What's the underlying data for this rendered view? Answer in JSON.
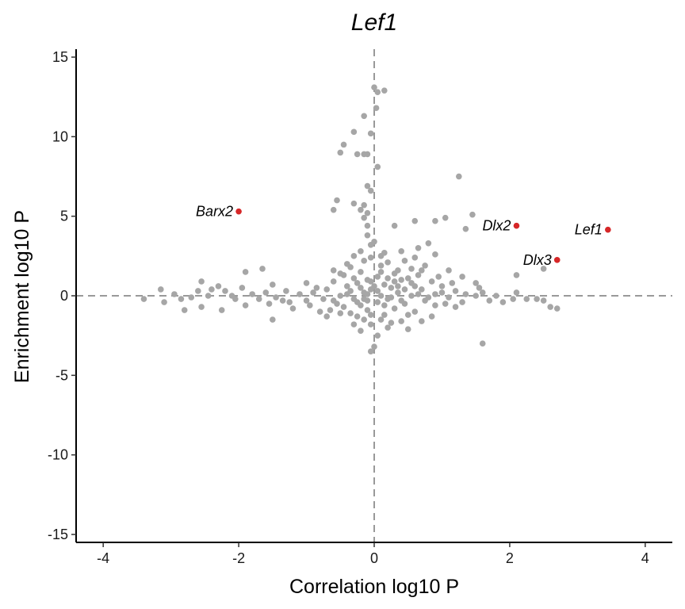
{
  "chart_data": {
    "type": "scatter",
    "title": "Lef1",
    "xlabel": "Correlation log10 P",
    "ylabel": "Enrichment log10 P",
    "xlim": [
      -4.4,
      4.4
    ],
    "ylim": [
      -15.5,
      15.5
    ],
    "xticks": [
      -4,
      -2,
      0,
      2,
      4
    ],
    "yticks": [
      -15,
      -10,
      -5,
      0,
      5,
      10,
      15
    ],
    "reference_lines": {
      "x": 0,
      "y": 0,
      "style": "dashed",
      "color": "#999999"
    },
    "grid": false,
    "colors": {
      "background_points": "#a6a6a6",
      "highlight_points": "#d62728"
    },
    "highlighted_points": [
      {
        "label": "Barx2",
        "x": -2.0,
        "y": 5.3
      },
      {
        "label": "Dlx2",
        "x": 2.1,
        "y": 4.4
      },
      {
        "label": "Lef1",
        "x": 3.45,
        "y": 4.15
      },
      {
        "label": "Dlx3",
        "x": 2.7,
        "y": 2.25
      }
    ],
    "background_points": [
      [
        0.0,
        13.1
      ],
      [
        0.05,
        12.8
      ],
      [
        0.15,
        12.9
      ],
      [
        0.03,
        11.8
      ],
      [
        -0.15,
        11.3
      ],
      [
        -0.3,
        10.3
      ],
      [
        -0.05,
        10.2
      ],
      [
        -0.45,
        9.5
      ],
      [
        -0.5,
        9.0
      ],
      [
        -0.25,
        8.9
      ],
      [
        -0.15,
        8.9
      ],
      [
        -0.1,
        8.9
      ],
      [
        0.05,
        8.1
      ],
      [
        1.25,
        7.5
      ],
      [
        -0.1,
        6.9
      ],
      [
        -0.05,
        6.6
      ],
      [
        -0.55,
        6.0
      ],
      [
        -0.3,
        5.8
      ],
      [
        -0.15,
        5.7
      ],
      [
        -0.6,
        5.4
      ],
      [
        -0.2,
        5.4
      ],
      [
        -0.1,
        5.2
      ],
      [
        -0.15,
        4.9
      ],
      [
        1.45,
        5.1
      ],
      [
        1.05,
        4.9
      ],
      [
        0.6,
        4.7
      ],
      [
        0.9,
        4.7
      ],
      [
        1.35,
        4.2
      ],
      [
        -0.1,
        4.4
      ],
      [
        0.3,
        4.4
      ],
      [
        -0.1,
        3.8
      ],
      [
        -0.05,
        3.2
      ],
      [
        0.8,
        3.3
      ],
      [
        0.65,
        3.0
      ],
      [
        0.4,
        2.8
      ],
      [
        0.15,
        2.7
      ],
      [
        -0.3,
        2.5
      ],
      [
        -0.05,
        2.4
      ],
      [
        0.6,
        2.4
      ],
      [
        0.9,
        2.6
      ],
      [
        -0.15,
        2.2
      ],
      [
        0.2,
        2.1
      ],
      [
        0.45,
        2.2
      ],
      [
        -0.35,
        1.8
      ],
      [
        0.1,
        1.9
      ],
      [
        0.55,
        1.7
      ],
      [
        0.75,
        1.9
      ],
      [
        1.1,
        1.6
      ],
      [
        -0.2,
        1.5
      ],
      [
        0.3,
        1.4
      ],
      [
        -0.45,
        1.3
      ],
      [
        0.05,
        1.2
      ],
      [
        0.65,
        1.3
      ],
      [
        1.3,
        1.2
      ],
      [
        -0.1,
        1.0
      ],
      [
        0.4,
        1.0
      ],
      [
        0.85,
        0.9
      ],
      [
        -0.6,
        0.9
      ],
      [
        -0.25,
        0.8
      ],
      [
        0.15,
        0.7
      ],
      [
        0.55,
        0.8
      ],
      [
        1.0,
        0.6
      ],
      [
        -0.4,
        0.6
      ],
      [
        0.25,
        0.5
      ],
      [
        -0.05,
        0.4
      ],
      [
        0.7,
        0.4
      ],
      [
        1.2,
        0.3
      ],
      [
        -0.7,
        0.4
      ],
      [
        -0.15,
        0.2
      ],
      [
        0.35,
        0.2
      ],
      [
        0.9,
        0.1
      ],
      [
        -0.5,
        0.0
      ],
      [
        0.1,
        0.0
      ],
      [
        0.55,
        0.0
      ],
      [
        1.5,
        0.0
      ],
      [
        -0.3,
        -0.2
      ],
      [
        0.2,
        -0.2
      ],
      [
        0.75,
        -0.3
      ],
      [
        -0.6,
        -0.3
      ],
      [
        0.05,
        -0.4
      ],
      [
        0.45,
        -0.5
      ],
      [
        -0.2,
        -0.6
      ],
      [
        1.05,
        -0.5
      ],
      [
        -0.45,
        -0.7
      ],
      [
        0.3,
        -0.8
      ],
      [
        -0.1,
        -0.9
      ],
      [
        0.6,
        -1.0
      ],
      [
        -0.35,
        -1.1
      ],
      [
        0.15,
        -1.2
      ],
      [
        0.85,
        -1.3
      ],
      [
        -0.15,
        -1.5
      ],
      [
        0.4,
        -1.6
      ],
      [
        -0.05,
        -1.8
      ],
      [
        0.2,
        -2.0
      ],
      [
        0.5,
        -2.1
      ],
      [
        -0.2,
        -2.2
      ],
      [
        0.05,
        -2.5
      ],
      [
        -0.05,
        -3.5
      ],
      [
        0.0,
        -3.2
      ],
      [
        1.6,
        -3.0
      ],
      [
        -0.2,
        0.5
      ],
      [
        -0.05,
        0.9
      ],
      [
        0.1,
        1.5
      ],
      [
        0.3,
        0.9
      ],
      [
        -0.35,
        0.3
      ],
      [
        0.45,
        0.4
      ],
      [
        -0.25,
        -0.4
      ],
      [
        0.15,
        -0.6
      ],
      [
        -0.1,
        0.1
      ],
      [
        0.05,
        0.3
      ],
      [
        0.25,
        -0.1
      ],
      [
        -0.4,
        0.1
      ],
      [
        0.65,
        0.1
      ],
      [
        -0.15,
        -0.2
      ],
      [
        0.35,
        0.6
      ],
      [
        -0.55,
        -0.5
      ],
      [
        0.8,
        -0.1
      ],
      [
        1.1,
        -0.1
      ],
      [
        1.35,
        0.1
      ],
      [
        -0.75,
        -0.2
      ],
      [
        -0.9,
        0.2
      ],
      [
        -1.0,
        -0.3
      ],
      [
        -1.1,
        0.1
      ],
      [
        -1.25,
        -0.4
      ],
      [
        -1.3,
        0.3
      ],
      [
        -1.45,
        -0.1
      ],
      [
        -1.5,
        0.7
      ],
      [
        -1.55,
        -0.5
      ],
      [
        -1.6,
        0.2
      ],
      [
        -1.7,
        -0.2
      ],
      [
        -1.65,
        1.7
      ],
      [
        -1.8,
        0.1
      ],
      [
        -1.9,
        -0.6
      ],
      [
        -1.95,
        0.5
      ],
      [
        -1.0,
        0.8
      ],
      [
        -0.85,
        0.5
      ],
      [
        -0.95,
        -0.6
      ],
      [
        -1.2,
        -0.8
      ],
      [
        -0.8,
        -1.0
      ],
      [
        -0.7,
        -1.3
      ],
      [
        -1.5,
        -1.5
      ],
      [
        -1.9,
        1.5
      ],
      [
        -2.1,
        0.0
      ],
      [
        -2.2,
        0.3
      ],
      [
        -2.3,
        0.6
      ],
      [
        -2.4,
        0.4
      ],
      [
        -2.55,
        0.9
      ],
      [
        -2.6,
        0.3
      ],
      [
        -2.7,
        -0.1
      ],
      [
        -2.85,
        -0.2
      ],
      [
        -2.95,
        0.1
      ],
      [
        -3.1,
        -0.4
      ],
      [
        -3.15,
        0.4
      ],
      [
        -3.4,
        -0.2
      ],
      [
        -2.55,
        -0.7
      ],
      [
        -2.25,
        -0.9
      ],
      [
        -2.8,
        -0.9
      ],
      [
        -2.05,
        -0.2
      ],
      [
        -2.45,
        0.0
      ],
      [
        -1.35,
        -0.3
      ],
      [
        1.6,
        0.2
      ],
      [
        1.7,
        -0.3
      ],
      [
        1.8,
        0.0
      ],
      [
        1.9,
        -0.4
      ],
      [
        2.05,
        -0.2
      ],
      [
        2.1,
        0.2
      ],
      [
        1.5,
        0.8
      ],
      [
        1.55,
        0.5
      ],
      [
        2.1,
        1.3
      ],
      [
        2.5,
        1.7
      ],
      [
        2.25,
        -0.2
      ],
      [
        2.4,
        -0.2
      ],
      [
        2.5,
        -0.3
      ],
      [
        2.6,
        -0.7
      ],
      [
        2.7,
        -0.8
      ],
      [
        1.3,
        -0.4
      ],
      [
        1.2,
        -0.7
      ],
      [
        1.15,
        0.8
      ],
      [
        0.95,
        1.2
      ],
      [
        0.7,
        1.6
      ],
      [
        0.5,
        1.1
      ],
      [
        0.2,
        1.1
      ],
      [
        -0.3,
        1.1
      ],
      [
        -0.5,
        1.4
      ],
      [
        -0.6,
        1.6
      ],
      [
        -0.4,
        2.0
      ],
      [
        -0.2,
        2.8
      ],
      [
        0.0,
        3.4
      ],
      [
        0.1,
        2.5
      ],
      [
        0.35,
        1.6
      ],
      [
        0.5,
        -1.2
      ],
      [
        0.7,
        -1.6
      ],
      [
        0.25,
        -1.7
      ],
      [
        -0.05,
        -1.2
      ],
      [
        -0.25,
        -1.3
      ],
      [
        -0.5,
        -1.1
      ],
      [
        -0.65,
        -0.9
      ],
      [
        -0.3,
        -1.8
      ],
      [
        0.1,
        -1.5
      ],
      [
        0.4,
        -0.3
      ],
      [
        0.9,
        -0.6
      ],
      [
        1.0,
        0.2
      ],
      [
        0.6,
        0.6
      ],
      [
        -0.1,
        -0.3
      ],
      [
        0.0,
        0.6
      ]
    ]
  }
}
